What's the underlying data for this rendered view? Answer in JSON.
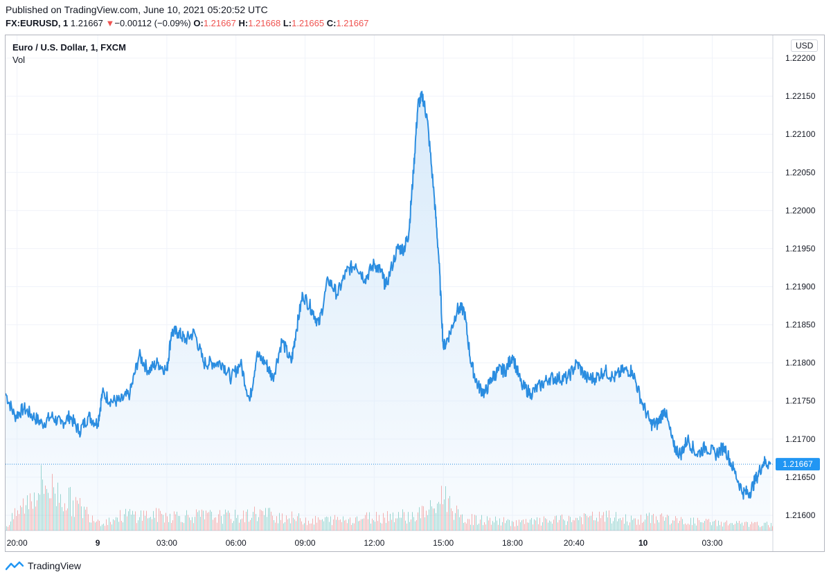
{
  "header": {
    "published": "Published on TradingView.com, June 10, 2021 05:20:52 UTC",
    "symbol": "FX:EURUSD, 1",
    "last": "1.21667",
    "change_arrow": "▼",
    "change": "−0.00112 (−0.09%)",
    "o_label": "O:",
    "o_value": "1.21667",
    "h_label": "H:",
    "h_value": "1.21668",
    "l_label": "L:",
    "l_value": "1.21665",
    "c_label": "C:",
    "c_value": "1.21667"
  },
  "chart_header": {
    "title": "Euro / U.S. Dollar, 1, FXCM",
    "vol_label": "Vol",
    "currency": "USD"
  },
  "colors": {
    "line": "#2b8de0",
    "fill": "#d6e9fa",
    "down": "#ef5350",
    "vol_up": "#26a69a",
    "vol_down": "#ef5350",
    "price_badge": "#2196f3"
  },
  "chart_data": {
    "type": "area",
    "title": "Euro / U.S. Dollar, 1, FXCM",
    "ylabel": "USD",
    "ylim": [
      1.2158,
      1.2223
    ],
    "yticks": [
      1.216,
      1.2165,
      1.217,
      1.2175,
      1.218,
      1.2185,
      1.219,
      1.2195,
      1.22,
      1.2205,
      1.221,
      1.2215,
      1.222
    ],
    "ytick_labels": [
      "1.21600",
      "1.21650",
      "1.21700",
      "1.21750",
      "1.21800",
      "1.21850",
      "1.21900",
      "1.21950",
      "1.22000",
      "1.22050",
      "1.22100",
      "1.22150",
      "1.22200"
    ],
    "x_range": [
      0,
      33.3
    ],
    "xticks": [
      {
        "label": "20:00",
        "x": 0.5,
        "bold": false
      },
      {
        "label": "9",
        "x": 4,
        "bold": true
      },
      {
        "label": "03:00",
        "x": 7,
        "bold": false
      },
      {
        "label": "06:00",
        "x": 10,
        "bold": false
      },
      {
        "label": "09:00",
        "x": 13,
        "bold": false
      },
      {
        "label": "12:00",
        "x": 16,
        "bold": false
      },
      {
        "label": "15:00",
        "x": 19,
        "bold": false
      },
      {
        "label": "18:00",
        "x": 22,
        "bold": false
      },
      {
        "label": "20:40",
        "x": 24.67,
        "bold": false
      },
      {
        "label": "10",
        "x": 27.67,
        "bold": true
      },
      {
        "label": "03:00",
        "x": 30.67,
        "bold": false
      }
    ],
    "last_price": 1.21667,
    "last_price_label": "1.21667",
    "series": [
      {
        "name": "EURUSD",
        "x": [
          0,
          0.4,
          0.8,
          1.2,
          1.6,
          2,
          2.4,
          2.8,
          3.2,
          3.6,
          4,
          4.2,
          4.6,
          5,
          5.4,
          5.8,
          6.2,
          6.6,
          7,
          7.2,
          7.5,
          7.8,
          8.2,
          8.6,
          9,
          9.4,
          9.8,
          10.2,
          10.6,
          10.9,
          11.3,
          11.6,
          12,
          12.4,
          12.6,
          12.9,
          13.3,
          13.6,
          14,
          14.4,
          14.8,
          15.2,
          15.6,
          16,
          16.3,
          16.5,
          17,
          17.3,
          17.5,
          17.7,
          17.9,
          18.1,
          18.3,
          18.6,
          18.8,
          19,
          19.3,
          19.6,
          19.9,
          20.2,
          20.5,
          20.8,
          21.1,
          21.4,
          21.7,
          22,
          22.4,
          22.8,
          23.2,
          23.6,
          24,
          24.4,
          24.8,
          25.2,
          25.6,
          26,
          26.4,
          26.8,
          27.2,
          27.6,
          28,
          28.3,
          28.6,
          29,
          29.3,
          29.6,
          30,
          30.4,
          30.8,
          31.2,
          31.6,
          32,
          32.3,
          32.6,
          32.9,
          33.2
        ],
        "values": [
          1.2176,
          1.2173,
          1.2174,
          1.2173,
          1.2172,
          1.2173,
          1.2172,
          1.2173,
          1.2171,
          1.2173,
          1.2172,
          1.2176,
          1.2175,
          1.2175,
          1.2176,
          1.2181,
          1.2179,
          1.218,
          1.2179,
          1.2184,
          1.2184,
          1.2183,
          1.2184,
          1.218,
          1.218,
          1.218,
          1.2178,
          1.218,
          1.2175,
          1.2181,
          1.218,
          1.2178,
          1.2183,
          1.218,
          1.2184,
          1.2189,
          1.2187,
          1.2185,
          1.2191,
          1.2189,
          1.2192,
          1.2193,
          1.2191,
          1.2193,
          1.2192,
          1.219,
          1.2195,
          1.2195,
          1.2197,
          1.2205,
          1.2214,
          1.2215,
          1.2212,
          1.2202,
          1.2194,
          1.2182,
          1.2184,
          1.2187,
          1.2187,
          1.218,
          1.2177,
          1.2176,
          1.2178,
          1.2179,
          1.2179,
          1.2181,
          1.2177,
          1.2176,
          1.2177,
          1.2178,
          1.2178,
          1.2178,
          1.218,
          1.2178,
          1.2178,
          1.2179,
          1.2178,
          1.2179,
          1.2179,
          1.2175,
          1.2172,
          1.2172,
          1.2174,
          1.2169,
          1.2168,
          1.217,
          1.2168,
          1.2169,
          1.2168,
          1.2169,
          1.2166,
          1.2163,
          1.2163,
          1.2165,
          1.2167,
          1.21667
        ]
      }
    ],
    "volume_series": {
      "name": "Vol",
      "x": [
        0.2,
        1.6,
        4.2,
        5.2,
        10.3,
        10.9,
        13.3,
        15.2,
        16.9,
        17.7,
        18,
        18.6,
        19,
        19.7,
        22.4,
        26.1,
        27.3,
        28.4,
        29,
        32.6
      ],
      "values": [
        25,
        120,
        20,
        40,
        35,
        45,
        25,
        30,
        40,
        35,
        45,
        55,
        95,
        30,
        20,
        35,
        25,
        35,
        25,
        15
      ]
    }
  },
  "footer": {
    "brand": "TradingView"
  }
}
